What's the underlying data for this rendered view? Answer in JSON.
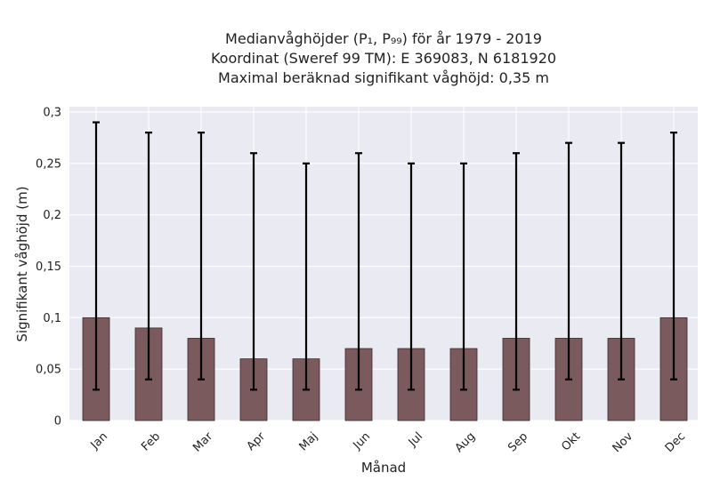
{
  "title": {
    "line1": "Medianvåghöjder (P₁, P₉₉) för år 1979 - 2019",
    "line2": "Koordinat (Sweref 99 TM): E 369083, N 6181920",
    "line3": "Maximal beräknad signifikant våghöjd: 0,35 m"
  },
  "chart_data": {
    "type": "bar",
    "categories": [
      "Jan",
      "Feb",
      "Mar",
      "Apr",
      "Maj",
      "Jun",
      "Jul",
      "Aug",
      "Sep",
      "Okt",
      "Nov",
      "Dec"
    ],
    "values": [
      0.1,
      0.09,
      0.08,
      0.06,
      0.06,
      0.07,
      0.07,
      0.07,
      0.08,
      0.08,
      0.08,
      0.1
    ],
    "error_low": [
      0.03,
      0.04,
      0.04,
      0.03,
      0.03,
      0.03,
      0.03,
      0.03,
      0.03,
      0.04,
      0.04,
      0.04
    ],
    "error_high": [
      0.29,
      0.28,
      0.28,
      0.26,
      0.25,
      0.26,
      0.25,
      0.25,
      0.26,
      0.27,
      0.27,
      0.28
    ],
    "xlabel": "Månad",
    "ylabel": "Signifikant våghöjd (m)",
    "ylim": [
      0,
      0.3
    ],
    "yticks": [
      "0",
      "0,05",
      "0,1",
      "0,15",
      "0,2",
      "0,25",
      "0,3"
    ],
    "grid": true,
    "bar_color": "#7a5a5c",
    "background_color": "#eaeaf2"
  }
}
